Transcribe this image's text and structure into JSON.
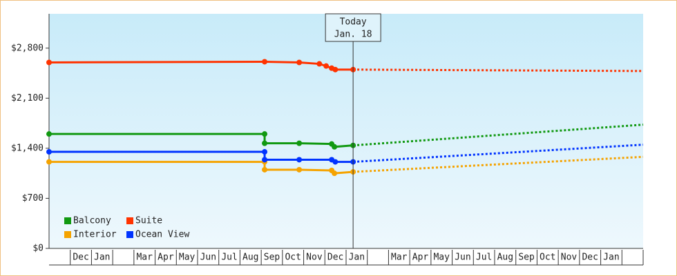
{
  "chart_data": {
    "type": "line",
    "months": [
      null,
      "Dec",
      "Jan",
      null,
      "Mar",
      "Apr",
      "May",
      "Jun",
      "Jul",
      "Aug",
      "Sep",
      "Oct",
      "Nov",
      "Dec",
      "Jan",
      null,
      "Mar",
      "Apr",
      "May",
      "Jun",
      "Jul",
      "Aug",
      "Sep",
      "Oct",
      "Nov",
      "Dec",
      "Jan",
      null
    ],
    "xlim": [
      0,
      28
    ],
    "ylim": [
      0,
      3280
    ],
    "yticks": [
      {
        "value": 0,
        "label": "$0"
      },
      {
        "value": 700,
        "label": "$700"
      },
      {
        "value": 1400,
        "label": "$1,400"
      },
      {
        "value": 2100,
        "label": "$2,100"
      },
      {
        "value": 2800,
        "label": "$2,800"
      }
    ],
    "today": {
      "x": 14.33,
      "label": [
        "Today",
        "Jan. 18"
      ]
    },
    "legend": "bottom-left",
    "series": [
      {
        "name": "Balcony",
        "color": "#119911",
        "x": [
          0,
          10.16,
          10.16,
          11.79,
          13.32,
          13.45,
          14.33
        ],
        "values": [
          1600,
          1600,
          1470,
          1470,
          1460,
          1420,
          1440
        ],
        "forecast_x": [
          14.33,
          28
        ],
        "forecast_values": [
          1440,
          1730
        ]
      },
      {
        "name": "Suite",
        "color": "#ff3300",
        "x": [
          0,
          10.16,
          11.79,
          12.74,
          13.06,
          13.32,
          13.49,
          14.33
        ],
        "values": [
          2600,
          2610,
          2600,
          2580,
          2550,
          2520,
          2500,
          2500
        ],
        "forecast_x": [
          14.33,
          28
        ],
        "forecast_values": [
          2500,
          2480
        ]
      },
      {
        "name": "Interior",
        "color": "#f5a300",
        "x": [
          0,
          10.16,
          10.16,
          11.79,
          13.32,
          13.45,
          14.33
        ],
        "values": [
          1210,
          1210,
          1100,
          1100,
          1090,
          1050,
          1070
        ],
        "forecast_x": [
          14.33,
          28
        ],
        "forecast_values": [
          1070,
          1280
        ]
      },
      {
        "name": "Ocean View",
        "color": "#0033ff",
        "x": [
          0,
          10.16,
          10.16,
          11.79,
          13.32,
          13.49,
          14.33
        ],
        "values": [
          1350,
          1350,
          1240,
          1240,
          1240,
          1210,
          1210
        ],
        "forecast_x": [
          14.33,
          28
        ],
        "forecast_values": [
          1210,
          1450
        ]
      }
    ]
  }
}
